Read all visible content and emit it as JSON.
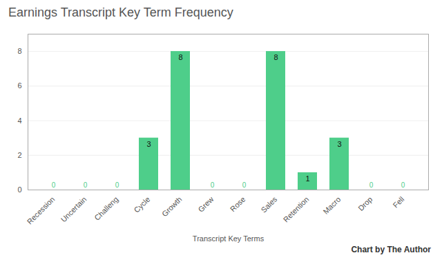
{
  "chart_data": {
    "type": "bar",
    "title": "Earnings Transcript Key Term Frequency",
    "categories": [
      "Recession",
      "Uncertain",
      "Challeng",
      "Cycle",
      "Growth",
      "Grew",
      "Rose",
      "Sales",
      "Retention",
      "Macro",
      "Drop",
      "Fell"
    ],
    "values": [
      0,
      0,
      0,
      3,
      8,
      0,
      0,
      8,
      1,
      3,
      0,
      0
    ],
    "color": "#4ECE8A",
    "xlabel": "Transcript Key Terms",
    "annotation": "Chart by The Author",
    "ylim": [
      0,
      9
    ],
    "yticks": [
      0,
      2,
      4,
      6,
      8
    ],
    "grid": true,
    "data_labels": true
  }
}
